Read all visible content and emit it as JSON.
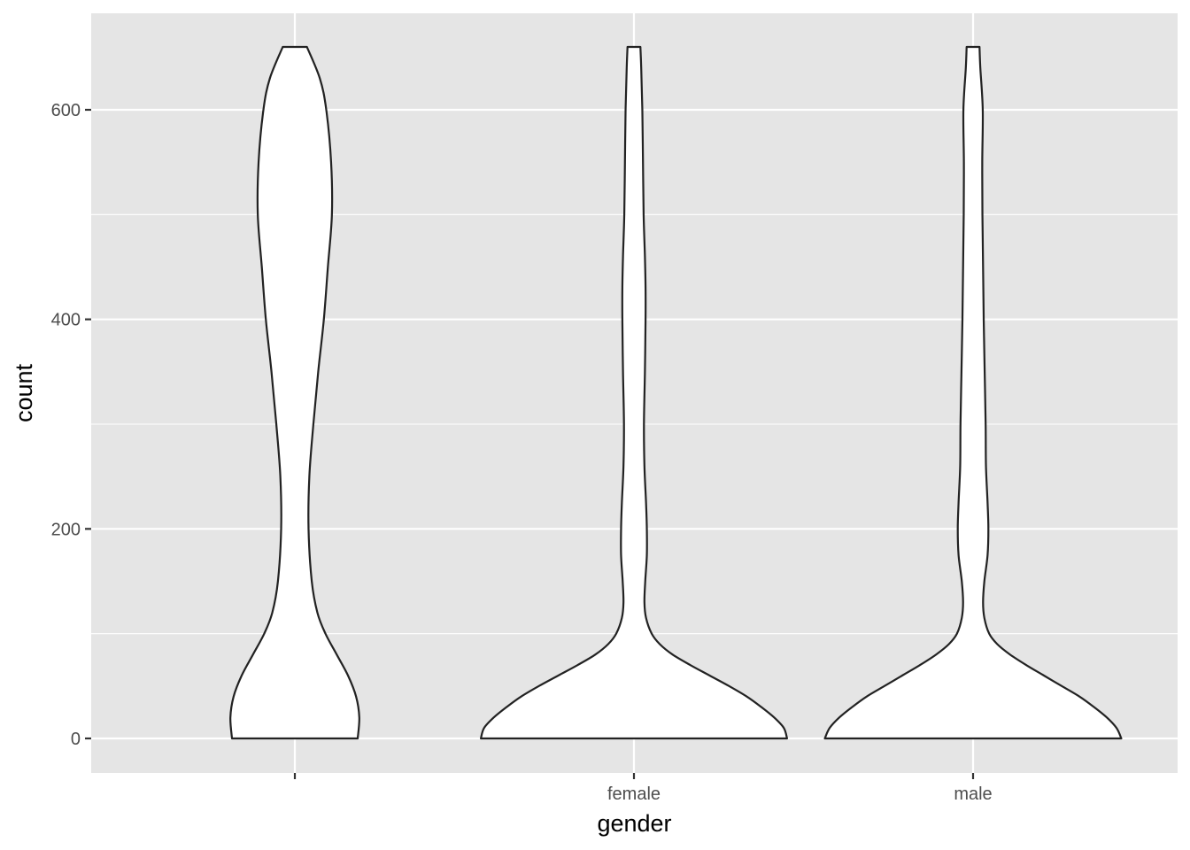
{
  "chart_data": {
    "type": "violin",
    "title": "",
    "xlabel": "gender",
    "ylabel": "count",
    "categories": [
      "",
      "female",
      "male"
    ],
    "ylim": [
      -32,
      672
    ],
    "yticks": [
      0,
      200,
      400,
      600
    ],
    "ytick_labels": [
      "0",
      "200",
      "400",
      "600"
    ],
    "y_range": [
      0,
      660
    ],
    "grid": true,
    "legend": "none",
    "colors": {
      "panel": "#e5e5e5",
      "grid": "#ffffff",
      "fill": "#ffffff",
      "outline": "#222222",
      "tick_text": "#4d4d4d"
    },
    "series": [
      {
        "category": "",
        "density": [
          [
            0,
            0.39
          ],
          [
            20,
            0.4
          ],
          [
            40,
            0.38
          ],
          [
            60,
            0.33
          ],
          [
            80,
            0.26
          ],
          [
            100,
            0.19
          ],
          [
            120,
            0.14
          ],
          [
            150,
            0.105
          ],
          [
            200,
            0.085
          ],
          [
            250,
            0.09
          ],
          [
            300,
            0.115
          ],
          [
            350,
            0.145
          ],
          [
            400,
            0.18
          ],
          [
            450,
            0.205
          ],
          [
            500,
            0.23
          ],
          [
            550,
            0.225
          ],
          [
            600,
            0.195
          ],
          [
            630,
            0.155
          ],
          [
            660,
            0.075
          ]
        ]
      },
      {
        "category": "female",
        "density": [
          [
            0,
            0.95
          ],
          [
            10,
            0.93
          ],
          [
            20,
            0.87
          ],
          [
            30,
            0.79
          ],
          [
            40,
            0.7
          ],
          [
            50,
            0.59
          ],
          [
            60,
            0.47
          ],
          [
            70,
            0.35
          ],
          [
            80,
            0.24
          ],
          [
            90,
            0.16
          ],
          [
            100,
            0.11
          ],
          [
            115,
            0.075
          ],
          [
            130,
            0.065
          ],
          [
            150,
            0.07
          ],
          [
            175,
            0.08
          ],
          [
            200,
            0.08
          ],
          [
            225,
            0.075
          ],
          [
            260,
            0.065
          ],
          [
            300,
            0.062
          ],
          [
            350,
            0.068
          ],
          [
            400,
            0.072
          ],
          [
            430,
            0.072
          ],
          [
            460,
            0.068
          ],
          [
            500,
            0.06
          ],
          [
            550,
            0.056
          ],
          [
            600,
            0.052
          ],
          [
            640,
            0.045
          ],
          [
            660,
            0.04
          ]
        ]
      },
      {
        "category": "male",
        "density": [
          [
            0,
            0.92
          ],
          [
            10,
            0.89
          ],
          [
            20,
            0.83
          ],
          [
            30,
            0.75
          ],
          [
            40,
            0.66
          ],
          [
            50,
            0.55
          ],
          [
            60,
            0.44
          ],
          [
            70,
            0.33
          ],
          [
            80,
            0.23
          ],
          [
            90,
            0.15
          ],
          [
            100,
            0.1
          ],
          [
            115,
            0.07
          ],
          [
            130,
            0.062
          ],
          [
            150,
            0.07
          ],
          [
            175,
            0.09
          ],
          [
            200,
            0.095
          ],
          [
            225,
            0.09
          ],
          [
            260,
            0.08
          ],
          [
            300,
            0.078
          ],
          [
            350,
            0.072
          ],
          [
            400,
            0.066
          ],
          [
            450,
            0.062
          ],
          [
            500,
            0.058
          ],
          [
            550,
            0.057
          ],
          [
            600,
            0.06
          ],
          [
            640,
            0.045
          ],
          [
            660,
            0.04
          ]
        ]
      }
    ]
  }
}
